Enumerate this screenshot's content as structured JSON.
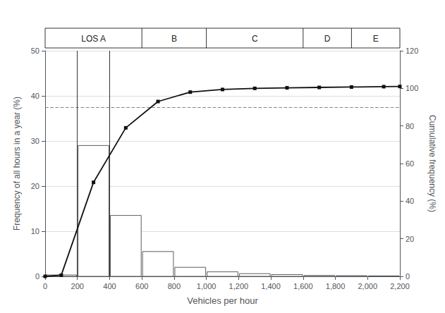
{
  "chart_data": {
    "type": "bar",
    "xlabel": "Vehicles per hour",
    "ylabel": "Frequency of all hours in a year (%)",
    "y2label": "Cumulative frequency (%)",
    "xlim": [
      0,
      2200
    ],
    "xticks": [
      0,
      200,
      400,
      600,
      800,
      1000,
      1200,
      1400,
      1600,
      1800,
      2000,
      2200
    ],
    "ylim": [
      0,
      50
    ],
    "yticks": [
      0,
      10,
      20,
      30,
      40,
      50
    ],
    "y2lim": [
      0,
      120
    ],
    "y2ticks": [
      0,
      20,
      40,
      60,
      80,
      100,
      120
    ],
    "grid": true,
    "series": [
      {
        "type": "bar",
        "color": "#ffffff",
        "bins": [
          0,
          200,
          400,
          600,
          800,
          1000,
          1200,
          1400,
          1600,
          1800,
          2000,
          2200
        ],
        "values": [
          0.3,
          29.0,
          13.5,
          5.5,
          2.0,
          1.0,
          0.6,
          0.4,
          0.2,
          0.15,
          0.1
        ]
      },
      {
        "type": "line",
        "axis": "y2",
        "color": "#111111",
        "marker": "square",
        "x": [
          0,
          100,
          300,
          500,
          700,
          900,
          1100,
          1300,
          1500,
          1700,
          1900,
          2100,
          2200
        ],
        "values": [
          0,
          0.6,
          50.0,
          79.0,
          93.0,
          98.0,
          99.4,
          100.0,
          100.3,
          100.5,
          100.7,
          100.9,
          101.0
        ]
      }
    ],
    "reference_lines": [
      {
        "axis": "y2",
        "value": 90,
        "color": "#888888",
        "line_style": "dashed"
      }
    ],
    "vlines": [
      200,
      400
    ],
    "los_zones": [
      {
        "label": "LOS A",
        "x_start": 0,
        "x_end": 600
      },
      {
        "label": "B",
        "x_start": 600,
        "x_end": 1000
      },
      {
        "label": "C",
        "x_start": 1000,
        "x_end": 1600
      },
      {
        "label": "D",
        "x_start": 1600,
        "x_end": 1900
      },
      {
        "label": "E",
        "x_start": 1900,
        "x_end": 2200
      }
    ],
    "los_dividers": [
      600,
      1000,
      1600,
      1900
    ]
  }
}
